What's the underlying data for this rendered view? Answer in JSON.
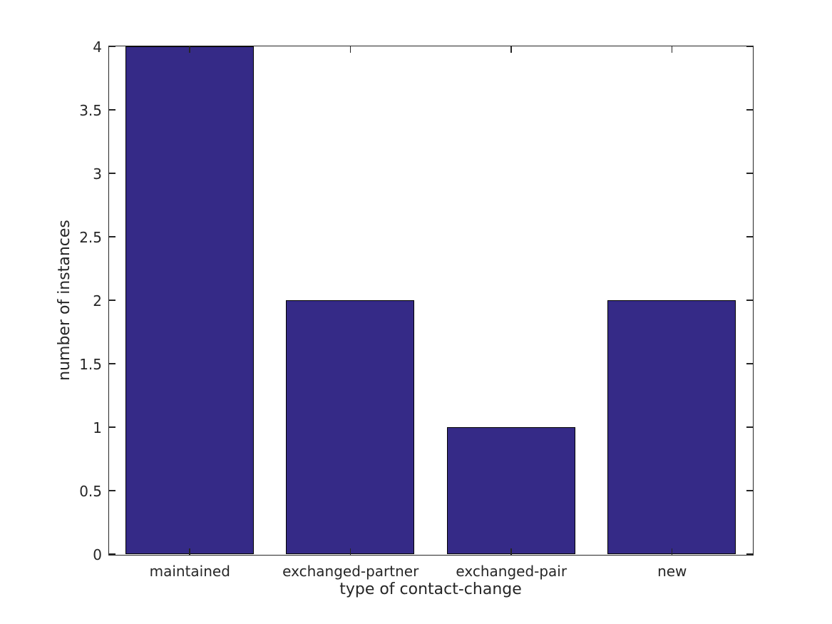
{
  "figure": {
    "background": "#ffffff"
  },
  "chart_data": {
    "type": "bar",
    "categories": [
      "maintained",
      "exchanged-partner",
      "exchanged-pair",
      "new"
    ],
    "values": [
      4,
      2,
      1,
      2
    ],
    "title": "",
    "xlabel": "type of contact-change",
    "ylabel": "number of instances",
    "ylim": [
      0,
      4
    ],
    "yticks": [
      0,
      0.5,
      1,
      1.5,
      2,
      2.5,
      3,
      3.5,
      4
    ],
    "ytick_labels": [
      "0",
      "0.5",
      "1",
      "1.5",
      "2",
      "2.5",
      "3",
      "3.5",
      "4"
    ],
    "bar_width_fraction": 0.8,
    "bar_color": "#352a87",
    "bar_edge_color": "#000000",
    "axis_color": "#262626",
    "text_color": "#262626",
    "grid": false,
    "legend": "none"
  }
}
